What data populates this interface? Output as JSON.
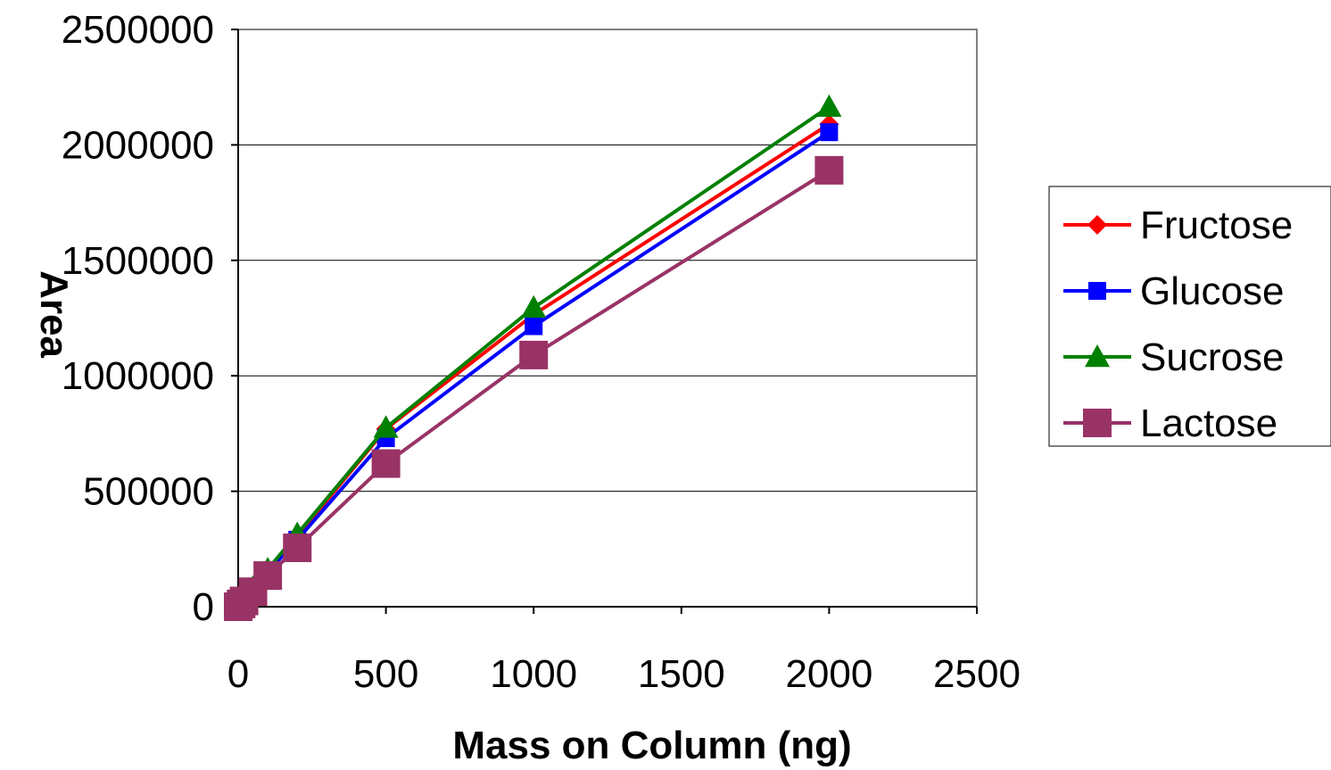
{
  "chart_data": {
    "type": "line",
    "title": "",
    "xlabel": "Mass on Column (ng)",
    "ylabel": "Area",
    "xlim": [
      0,
      2500
    ],
    "ylim": [
      0,
      2500000
    ],
    "xticks": [
      0,
      500,
      1000,
      1500,
      2000,
      2500
    ],
    "yticks": [
      0,
      500000,
      1000000,
      1500000,
      2000000,
      2500000
    ],
    "xtick_labels": [
      "0",
      "500",
      "1000",
      "1500",
      "2000",
      "2500"
    ],
    "ytick_labels": [
      "0",
      "500000",
      "1000000",
      "1500000",
      "2000000",
      "2500000"
    ],
    "grid": "horizontal",
    "legend_position": "right",
    "series": [
      {
        "name": "Fructose",
        "color": "#ff0000",
        "marker": "diamond",
        "x": [
          0,
          10,
          20,
          50,
          100,
          200,
          500,
          1000,
          2000
        ],
        "y": [
          0,
          15000,
          30000,
          80000,
          160000,
          305000,
          770000,
          1265000,
          2090000
        ]
      },
      {
        "name": "Glucose",
        "color": "#0000ff",
        "marker": "square",
        "x": [
          0,
          10,
          20,
          50,
          100,
          200,
          500,
          1000,
          2000
        ],
        "y": [
          0,
          14000,
          28000,
          75000,
          150000,
          290000,
          730000,
          1215000,
          2055000
        ]
      },
      {
        "name": "Sucrose",
        "color": "#008000",
        "marker": "triangle",
        "x": [
          0,
          10,
          20,
          50,
          100,
          200,
          500,
          1000,
          2000
        ],
        "y": [
          0,
          15000,
          31000,
          82000,
          162000,
          315000,
          775000,
          1295000,
          2165000
        ]
      },
      {
        "name": "Lactose",
        "color": "#993366",
        "marker": "square",
        "x": [
          0,
          10,
          20,
          50,
          100,
          200,
          500,
          1000,
          2000
        ],
        "y": [
          0,
          12000,
          25000,
          65000,
          135000,
          255000,
          620000,
          1090000,
          1890000
        ]
      }
    ]
  }
}
